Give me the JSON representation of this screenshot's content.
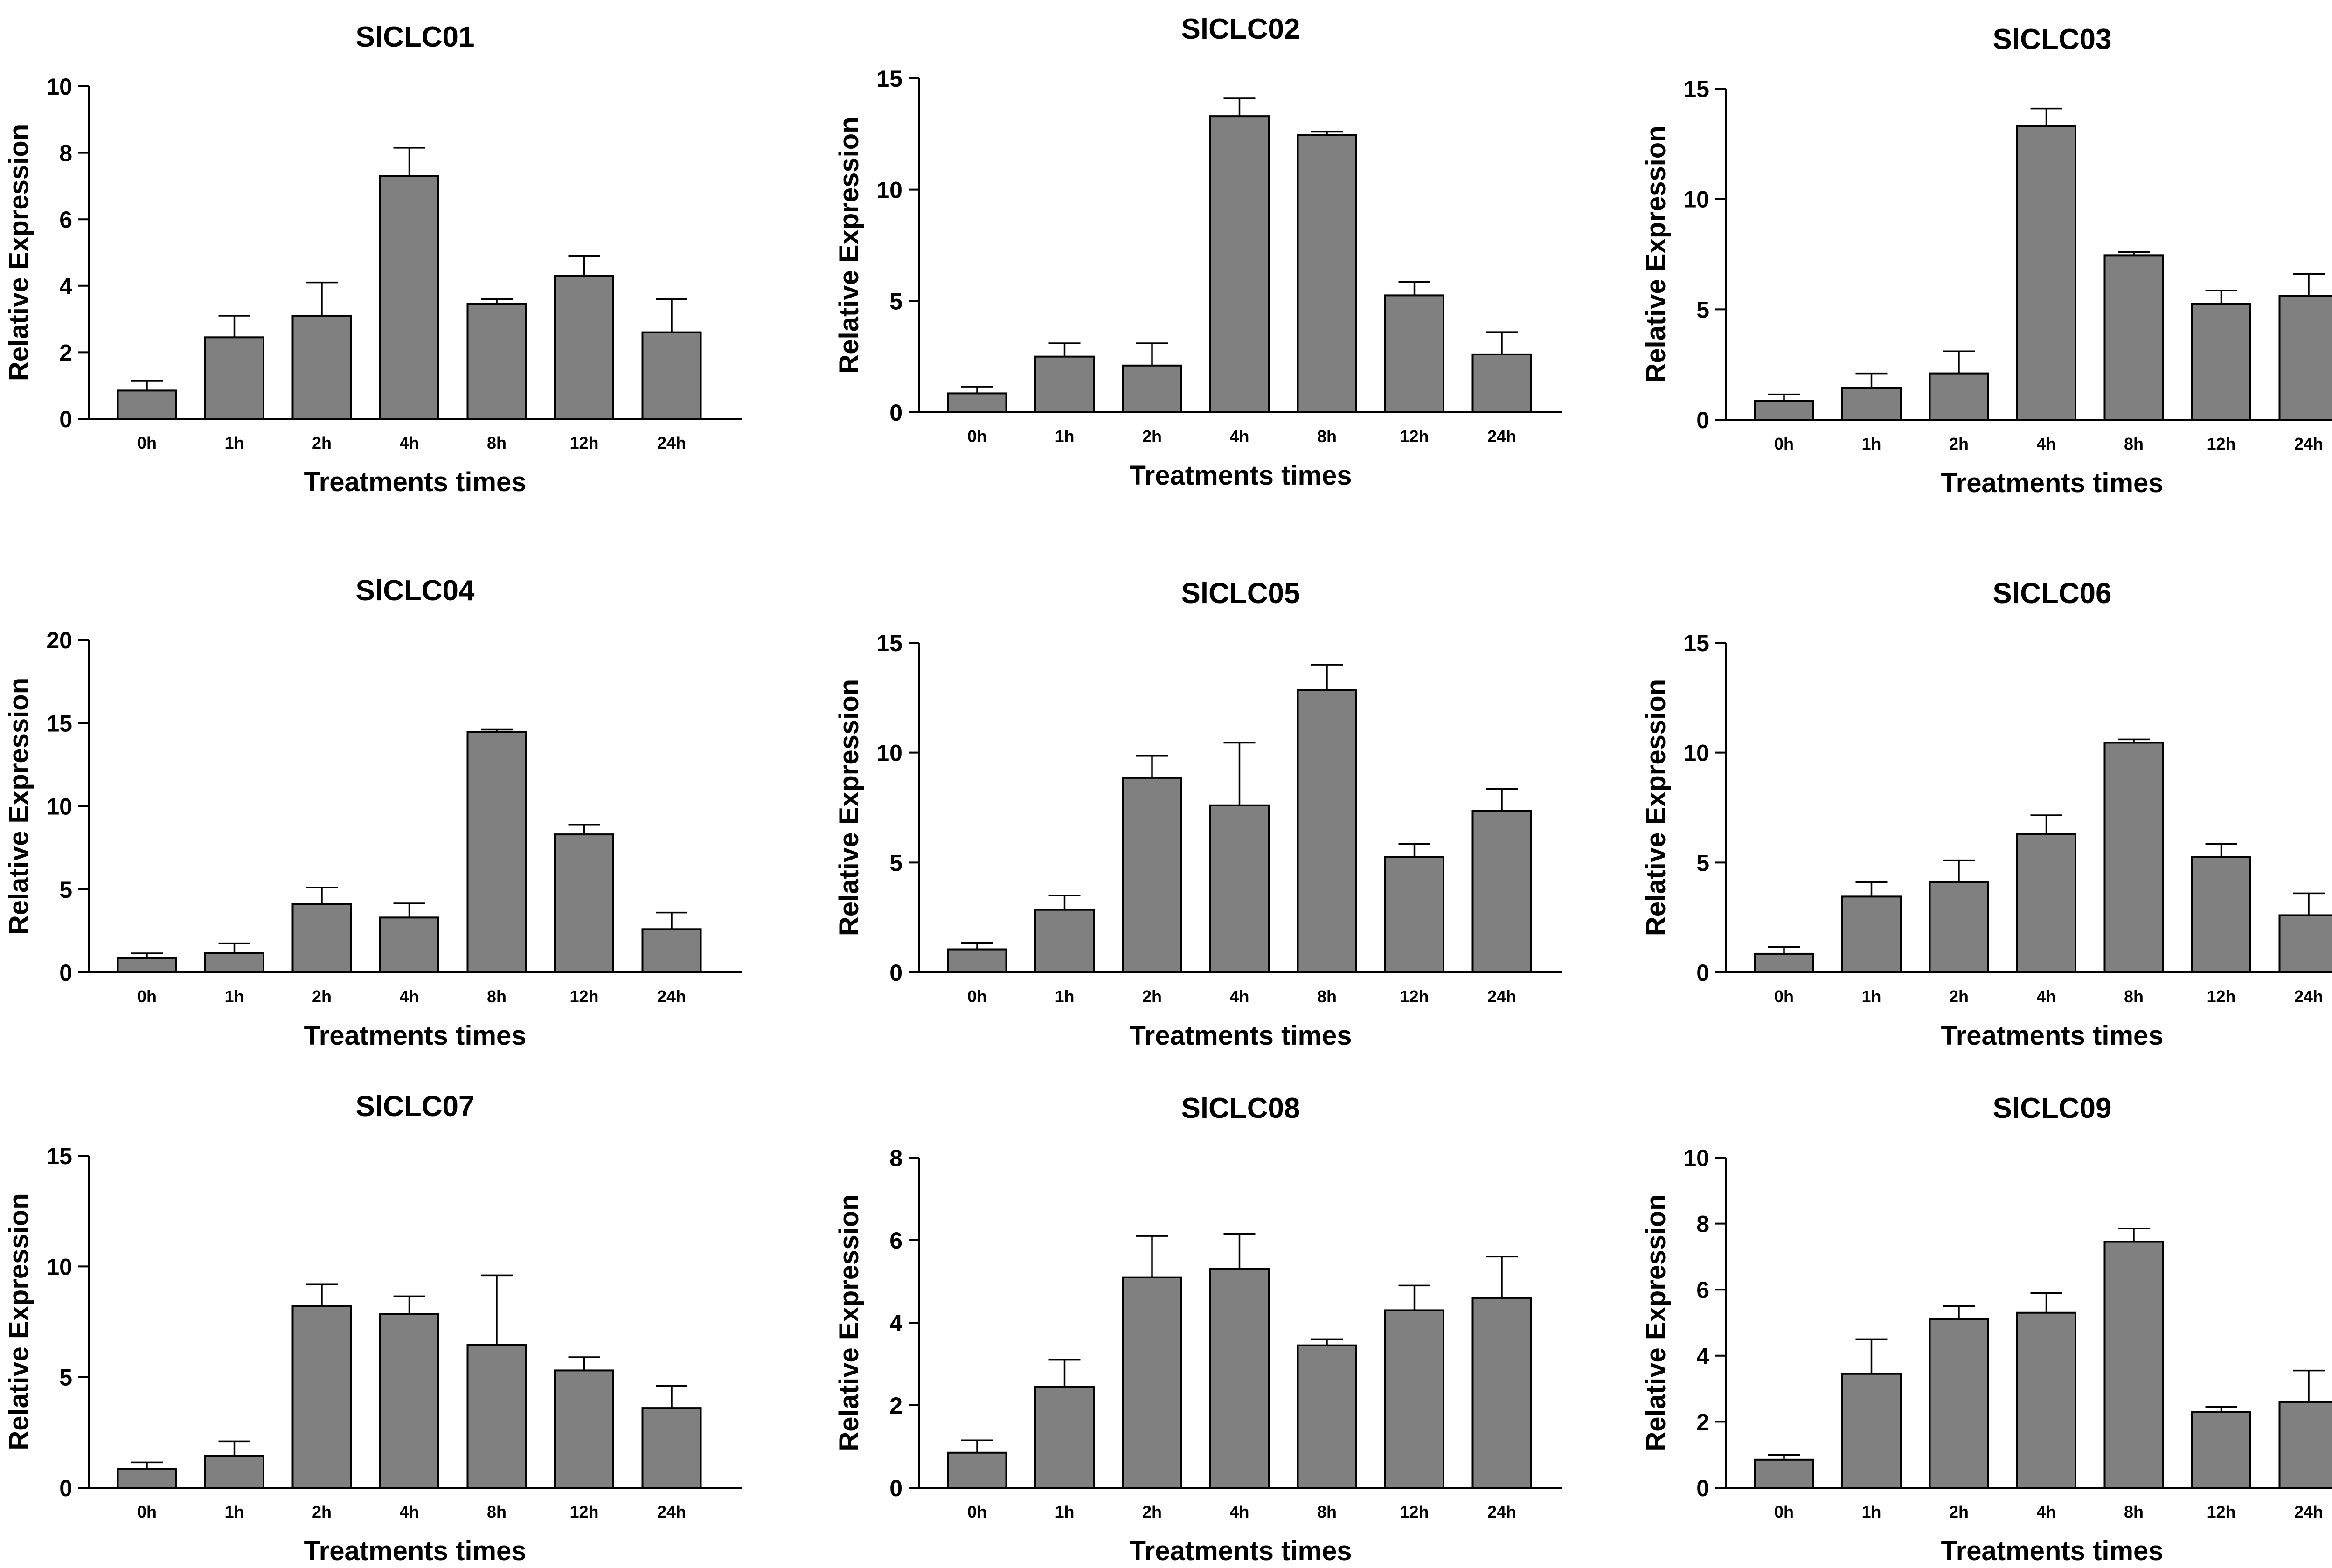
{
  "bar_color": "#808080",
  "charts": [
    {
      "title": "SlCLC01",
      "xlabel": "Treatments times",
      "ylabel": "Relative Expression"
    },
    {
      "title": "SlCLC02",
      "xlabel": "Treatments times",
      "ylabel": "Relative Expression"
    },
    {
      "title": "SlCLC03",
      "xlabel": "Treatments times",
      "ylabel": "Relative Expression"
    },
    {
      "title": "SlCLC04",
      "xlabel": "Treatments times",
      "ylabel": "Relative Expression"
    },
    {
      "title": "SlCLC05",
      "xlabel": "Treatments times",
      "ylabel": "Relative Expression"
    },
    {
      "title": "SlCLC06",
      "xlabel": "Treatments times",
      "ylabel": "Relative Expression"
    },
    {
      "title": "SlCLC07",
      "xlabel": "Treatments times",
      "ylabel": "Relative Expression"
    },
    {
      "title": "SlCLC08",
      "xlabel": "Treatments times",
      "ylabel": "Relative Expression"
    },
    {
      "title": "SlCLC09",
      "xlabel": "Treatments times",
      "ylabel": "Relative Expression"
    }
  ],
  "chart_data": [
    {
      "type": "bar",
      "title": "SlCLC01",
      "xlabel": "Treatments times",
      "ylabel": "Relative Expression",
      "categories": [
        "0h",
        "1h",
        "2h",
        "4h",
        "8h",
        "12h",
        "24h"
      ],
      "values": [
        0.85,
        2.45,
        3.1,
        7.3,
        3.45,
        4.3,
        2.6
      ],
      "errors": [
        0.3,
        0.65,
        1.0,
        0.85,
        0.15,
        0.6,
        1.0
      ],
      "ylim": [
        0,
        10
      ],
      "yticks": [
        0,
        2,
        4,
        6,
        8,
        10
      ]
    },
    {
      "type": "bar",
      "title": "SlCLC02",
      "xlabel": "Treatments times",
      "ylabel": "Relative Expression",
      "categories": [
        "0h",
        "1h",
        "2h",
        "4h",
        "8h",
        "12h",
        "24h"
      ],
      "values": [
        0.85,
        2.5,
        2.1,
        13.3,
        12.45,
        5.25,
        2.6
      ],
      "errors": [
        0.3,
        0.6,
        1.0,
        0.8,
        0.15,
        0.6,
        1.0
      ],
      "ylim": [
        0,
        15
      ],
      "yticks": [
        0,
        5,
        10,
        15
      ]
    },
    {
      "type": "bar",
      "title": "SlCLC03",
      "xlabel": "Treatments times",
      "ylabel": "Relative Expression",
      "categories": [
        "0h",
        "1h",
        "2h",
        "4h",
        "8h",
        "12h",
        "24h"
      ],
      "values": [
        0.85,
        1.45,
        2.1,
        13.3,
        7.45,
        5.25,
        5.6
      ],
      "errors": [
        0.3,
        0.65,
        1.0,
        0.8,
        0.15,
        0.6,
        1.0
      ],
      "ylim": [
        0,
        15
      ],
      "yticks": [
        0,
        5,
        10,
        15
      ]
    },
    {
      "type": "bar",
      "title": "SlCLC04",
      "xlabel": "Treatments times",
      "ylabel": "Relative Expression",
      "categories": [
        "0h",
        "1h",
        "2h",
        "4h",
        "8h",
        "12h",
        "24h"
      ],
      "values": [
        0.85,
        1.15,
        4.1,
        3.3,
        14.45,
        8.3,
        2.6
      ],
      "errors": [
        0.3,
        0.6,
        1.0,
        0.85,
        0.15,
        0.6,
        1.0
      ],
      "ylim": [
        0,
        20
      ],
      "yticks": [
        0,
        5,
        10,
        15,
        20
      ]
    },
    {
      "type": "bar",
      "title": "SlCLC05",
      "xlabel": "Treatments times",
      "ylabel": "Relative Expression",
      "categories": [
        "0h",
        "1h",
        "2h",
        "4h",
        "8h",
        "12h",
        "24h"
      ],
      "values": [
        1.05,
        2.85,
        8.85,
        7.6,
        12.85,
        5.25,
        7.35
      ],
      "errors": [
        0.3,
        0.65,
        1.0,
        2.85,
        1.15,
        0.6,
        1.0
      ],
      "ylim": [
        0,
        15
      ],
      "yticks": [
        0,
        5,
        10,
        15
      ]
    },
    {
      "type": "bar",
      "title": "SlCLC06",
      "xlabel": "Treatments times",
      "ylabel": "Relative Expression",
      "categories": [
        "0h",
        "1h",
        "2h",
        "4h",
        "8h",
        "12h",
        "24h"
      ],
      "values": [
        0.85,
        3.45,
        4.1,
        6.3,
        10.45,
        5.25,
        2.6
      ],
      "errors": [
        0.3,
        0.65,
        1.0,
        0.85,
        0.15,
        0.6,
        1.0
      ],
      "ylim": [
        0,
        15
      ],
      "yticks": [
        0,
        5,
        10,
        15
      ]
    },
    {
      "type": "bar",
      "title": "SlCLC07",
      "xlabel": "Treatments times",
      "ylabel": "Relative Expression",
      "categories": [
        "0h",
        "1h",
        "2h",
        "4h",
        "8h",
        "12h",
        "24h"
      ],
      "values": [
        0.85,
        1.45,
        8.2,
        7.85,
        6.45,
        5.3,
        3.6
      ],
      "errors": [
        0.3,
        0.65,
        1.0,
        0.8,
        3.15,
        0.6,
        1.0
      ],
      "ylim": [
        0,
        15
      ],
      "yticks": [
        0,
        5,
        10,
        15
      ]
    },
    {
      "type": "bar",
      "title": "SlCLC08",
      "xlabel": "Treatments times",
      "ylabel": "Relative Expression",
      "categories": [
        "0h",
        "1h",
        "2h",
        "4h",
        "8h",
        "12h",
        "24h"
      ],
      "values": [
        0.85,
        2.45,
        5.1,
        5.3,
        3.45,
        4.3,
        4.6
      ],
      "errors": [
        0.3,
        0.65,
        1.0,
        0.85,
        0.15,
        0.6,
        1.0
      ],
      "ylim": [
        0,
        8
      ],
      "yticks": [
        0,
        2,
        4,
        6,
        8
      ]
    },
    {
      "type": "bar",
      "title": "SlCLC09",
      "xlabel": "Treatments times",
      "ylabel": "Relative Expression",
      "categories": [
        "0h",
        "1h",
        "2h",
        "4h",
        "8h",
        "12h",
        "24h"
      ],
      "values": [
        0.85,
        3.45,
        5.1,
        5.3,
        7.45,
        2.3,
        2.6
      ],
      "errors": [
        0.15,
        1.05,
        0.4,
        0.6,
        0.4,
        0.15,
        0.95
      ],
      "ylim": [
        0,
        10
      ],
      "yticks": [
        0,
        2,
        4,
        6,
        8,
        10
      ]
    }
  ]
}
